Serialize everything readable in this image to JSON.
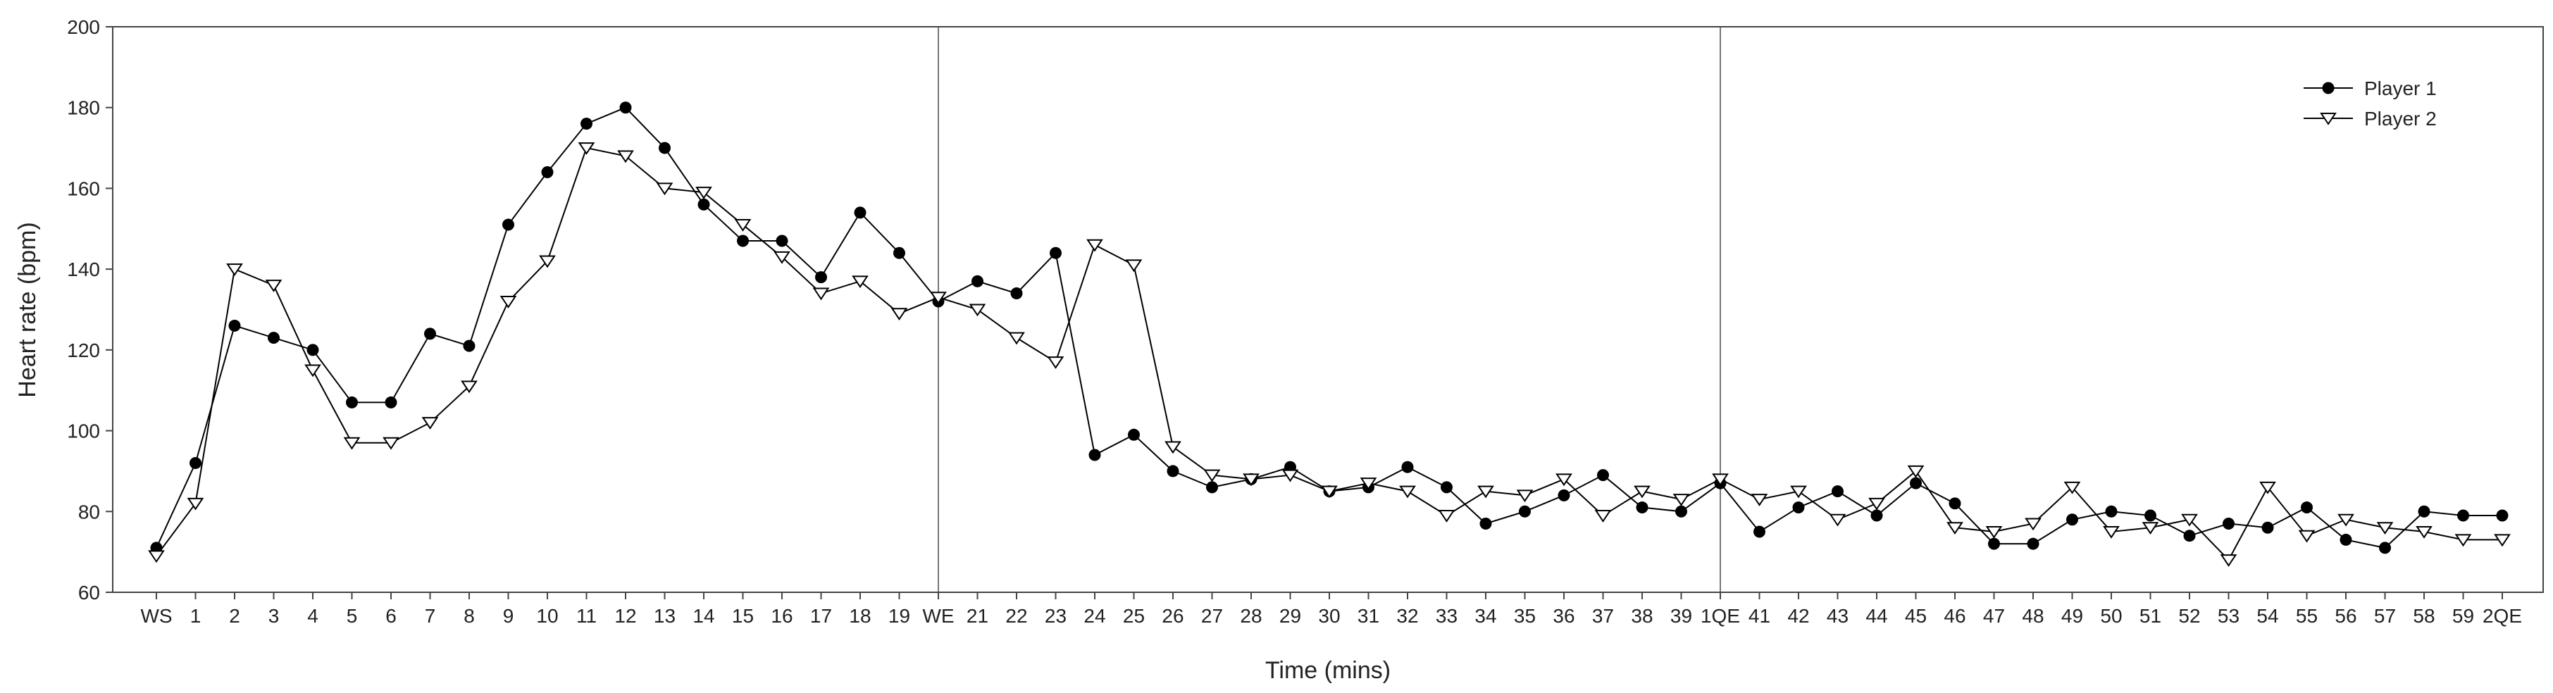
{
  "chart_data": {
    "type": "line",
    "xlabel": "Time (mins)",
    "ylabel": "Heart rate (bpm)",
    "ylim": [
      60,
      200
    ],
    "yticks": [
      60,
      80,
      100,
      120,
      140,
      160,
      180,
      200
    ],
    "categories": [
      "WS",
      "1",
      "2",
      "3",
      "4",
      "5",
      "6",
      "7",
      "8",
      "9",
      "10",
      "11",
      "12",
      "13",
      "14",
      "15",
      "16",
      "17",
      "18",
      "19",
      "WE",
      "21",
      "22",
      "23",
      "24",
      "25",
      "26",
      "27",
      "28",
      "29",
      "30",
      "31",
      "32",
      "33",
      "34",
      "35",
      "36",
      "37",
      "38",
      "39",
      "1QE",
      "41",
      "42",
      "43",
      "44",
      "45",
      "46",
      "47",
      "48",
      "49",
      "50",
      "51",
      "52",
      "53",
      "54",
      "55",
      "56",
      "57",
      "58",
      "59",
      "2QE"
    ],
    "vertical_markers": [
      "WE",
      "1QE"
    ],
    "legend_position": "top-right",
    "series": [
      {
        "name": "Player 1",
        "marker": "filled-circle",
        "color": "#000000",
        "values": [
          71,
          92,
          126,
          123,
          120,
          107,
          107,
          124,
          121,
          151,
          164,
          176,
          180,
          170,
          156,
          147,
          147,
          138,
          154,
          144,
          132,
          137,
          134,
          144,
          94,
          99,
          90,
          86,
          88,
          91,
          85,
          86,
          91,
          86,
          77,
          80,
          84,
          89,
          81,
          80,
          87,
          75,
          81,
          85,
          79,
          87,
          82,
          72,
          72,
          78,
          80,
          79,
          74,
          77,
          76,
          81,
          73,
          71,
          80,
          79,
          79
        ]
      },
      {
        "name": "Player 2",
        "marker": "open-triangle-down",
        "color": "#000000",
        "values": [
          69,
          82,
          140,
          136,
          115,
          97,
          97,
          102,
          111,
          132,
          142,
          170,
          168,
          160,
          159,
          151,
          143,
          134,
          137,
          129,
          133,
          130,
          123,
          117,
          146,
          141,
          96,
          89,
          88,
          89,
          85,
          87,
          85,
          79,
          85,
          84,
          88,
          79,
          85,
          83,
          88,
          83,
          85,
          78,
          82,
          90,
          76,
          75,
          77,
          86,
          75,
          76,
          78,
          68,
          86,
          74,
          78,
          76,
          75,
          73,
          73
        ]
      }
    ]
  }
}
